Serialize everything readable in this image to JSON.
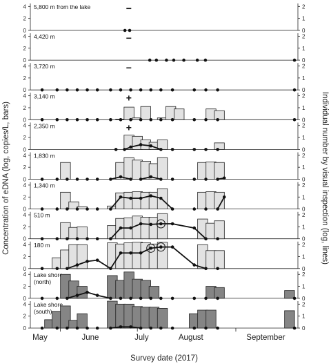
{
  "chart_data": {
    "type": "bar",
    "xlabel": "Survey date (2017)",
    "ylabel_left": "Concentration of eDNA (log, copies/L, bars)",
    "ylabel_right": "Individual number by visual inspection (log, lines)",
    "months": [
      "May",
      "June",
      "July",
      "August",
      "September"
    ],
    "y_left_ticks": [
      "0",
      "2",
      "4"
    ],
    "y_right_ticks": [
      "0",
      "1",
      "2"
    ],
    "ylim_left": [
      0,
      4.5
    ],
    "ylim_right": [
      0,
      2.25
    ],
    "colors": {
      "light_bar": "#e2e2e2",
      "dark_bar": "#858585",
      "line": "#111111"
    },
    "panels": [
      {
        "label": "5,800 m from the lake",
        "sign": "−",
        "bar_color": "light",
        "x": [
          12,
          30,
          45,
          67,
          90,
          103
        ],
        "bars": [
          0,
          0,
          0,
          0,
          0,
          0
        ],
        "line_x": [
          44.2,
          46.4
        ],
        "line_y": [
          0,
          0
        ],
        "circled_points": []
      },
      {
        "label": "4,420 m",
        "sign": "−",
        "bar_color": "light",
        "x": [
          12,
          30,
          45,
          67,
          90,
          103
        ],
        "bars": [
          0,
          0,
          0,
          0,
          0,
          0
        ],
        "line_x": [
          55.8,
          58.9,
          63.6,
          67.0,
          71.7,
          78.0,
          81.8,
          123.4
        ],
        "line_y": [
          0,
          0,
          0,
          0,
          0,
          0,
          0,
          0
        ],
        "circled_points": []
      },
      {
        "label": "3,720 m",
        "sign": "−",
        "bar_color": "light",
        "x": [
          12,
          30,
          45,
          67,
          90,
          103
        ],
        "bars": [
          0,
          0,
          0,
          0,
          0,
          0
        ],
        "line_x": [
          5.5,
          12.5,
          17.2,
          21.9,
          26.6,
          31.3,
          37.5,
          42.2,
          46.9,
          51.6,
          56.3,
          61.0,
          66.4,
          76.6,
          82.0,
          87.5,
          123.4
        ],
        "line_y": [
          0,
          0,
          0,
          0,
          0,
          0,
          0,
          0,
          0,
          0,
          0,
          0,
          0,
          0,
          0,
          0,
          0
        ],
        "circled_points": []
      },
      {
        "label": "3,140 m",
        "sign": "+",
        "bar_color": "light",
        "x": [
          30.5,
          34.4,
          38.3,
          42.2,
          46.1,
          50.0,
          53.9,
          61.7,
          65.6,
          69.5,
          80.5,
          84.4,
          88.3
        ],
        "bars": [
          0,
          0,
          0,
          0.1,
          2.1,
          0.3,
          2.2,
          0.3,
          2.2,
          1.8,
          0,
          1.8,
          1.5
        ],
        "line_x": [
          5.5,
          12.5,
          17.2,
          21.9,
          26.6,
          31.3,
          37.5,
          42.2,
          46.9,
          51.6,
          56.3,
          61.0,
          66.4,
          76.6,
          82.0,
          87.5,
          123.4
        ],
        "line_y": [
          0,
          0,
          0,
          0,
          0,
          0,
          0,
          0,
          0,
          0,
          0,
          0,
          0,
          0,
          0,
          0,
          0
        ],
        "circled_points": []
      },
      {
        "label": "2,350 m",
        "sign": "+",
        "bar_color": "light",
        "x": [
          46.1,
          50.0,
          53.9,
          57.8,
          61.7,
          88.3
        ],
        "bars": [
          2.4,
          2.2,
          1.6,
          1.2,
          1.6,
          1.1
        ],
        "line_x": [
          40.0,
          44.0,
          46.9,
          51.6,
          56.3,
          61.0,
          66.4,
          76.6,
          82.0,
          87.5
        ],
        "line_y": [
          0,
          0,
          0.2,
          0.4,
          0.3,
          0,
          0,
          0,
          0,
          0
        ],
        "circled_points": []
      },
      {
        "label": "1,830 m",
        "sign": "",
        "bar_color": "light",
        "x": [
          16.4,
          42.2,
          46.1,
          50.0,
          53.9,
          57.8,
          61.7,
          80.5,
          84.4,
          88.3
        ],
        "bars": [
          2.8,
          2.8,
          3.6,
          3.2,
          3.0,
          2.6,
          3.6,
          2.8,
          2.9,
          2.8
        ],
        "line_x": [
          5.5,
          12.5,
          17.2,
          21.9,
          26.6,
          31.3,
          37.5,
          42.2,
          46.9,
          51.6,
          56.3,
          61.0,
          66.4,
          76.6,
          82.0,
          87.5,
          90.6
        ],
        "line_y": [
          0,
          0,
          0,
          0,
          0,
          0,
          0,
          0.2,
          0,
          0,
          0.2,
          0,
          0,
          0,
          0,
          0,
          0.1
        ],
        "circled_points": []
      },
      {
        "label": "1,340 m",
        "sign": "",
        "bar_color": "light",
        "x": [
          16.4,
          20.3,
          24.2,
          38.3,
          42.2,
          46.1,
          50.0,
          53.9,
          57.8,
          61.7,
          80.5,
          84.4,
          88.3
        ],
        "bars": [
          2.8,
          1.2,
          0.4,
          0.5,
          2.7,
          2.8,
          2.9,
          2.8,
          2.8,
          3.4,
          2.8,
          2.9,
          2.8
        ],
        "line_x": [
          5.5,
          12.5,
          17.2,
          21.9,
          26.6,
          31.3,
          37.5,
          42.2,
          46.9,
          51.6,
          56.3,
          61.0,
          66.4,
          76.6,
          82.0,
          87.5,
          90.6
        ],
        "line_y": [
          0,
          0,
          0,
          0,
          0,
          0,
          0,
          1.0,
          0.9,
          0.9,
          1.1,
          0.9,
          0,
          0,
          0,
          0,
          1.0
        ],
        "circled_points": []
      },
      {
        "label": "510 m",
        "sign": "",
        "bar_color": "light",
        "x": [
          16.4,
          20.3,
          24.2,
          38.3,
          42.2,
          46.1,
          50.0,
          53.9,
          57.8,
          61.7,
          80.5,
          84.4,
          88.3
        ],
        "bars": [
          2.7,
          1.9,
          2.0,
          2.2,
          3.4,
          3.5,
          3.8,
          3.6,
          3.6,
          4.2,
          3.3,
          2.6,
          3.0
        ],
        "line_x": [
          5.5,
          12.5,
          17.2,
          21.9,
          26.6,
          31.3,
          37.5,
          42.2,
          46.9,
          51.6,
          56.3,
          61.0,
          66.4,
          76.6,
          82.0,
          87.5
        ],
        "line_y": [
          0,
          0,
          0,
          0,
          0,
          0,
          0,
          0.9,
          0.9,
          1.25,
          1.2,
          1.25,
          1.25,
          0.9,
          0,
          0
        ],
        "circled_points": [
          11
        ]
      },
      {
        "label": "180 m",
        "sign": "",
        "bar_color": "light",
        "x": [
          12.5,
          16.4,
          20.3,
          24.2,
          38.3,
          42.2,
          46.1,
          50.0,
          53.9,
          57.8,
          61.7,
          80.5,
          84.4,
          88.3
        ],
        "bars": [
          1.8,
          3.1,
          4.0,
          4.0,
          4.3,
          4.1,
          4.3,
          4.4,
          4.3,
          4.1,
          4.4,
          4.0,
          3.0,
          3.0
        ],
        "line_x": [
          5.5,
          12.5,
          17.2,
          21.9,
          26.6,
          31.3,
          37.5,
          42.2,
          46.9,
          51.6,
          56.3,
          61.0,
          66.4,
          76.6,
          82.0,
          87.5
        ],
        "line_y": [
          0,
          0,
          0,
          0.3,
          0.6,
          0.7,
          0,
          1.3,
          1.3,
          1.3,
          1.7,
          1.8,
          1.8,
          0.3,
          0,
          0
        ],
        "circled_points": [
          10,
          11
        ]
      },
      {
        "label": "Lake shore\n(north)",
        "sign": "",
        "bar_color": "dark",
        "x": [
          16.4,
          20.3,
          24.2,
          38.3,
          42.2,
          46.1,
          50.0,
          53.9,
          57.8,
          84.4,
          88.3,
          121.1
        ],
        "bars": [
          4.0,
          2.9,
          2.0,
          3.8,
          3.0,
          4.4,
          3.2,
          3.0,
          2.0,
          2.0,
          1.8,
          1.3
        ],
        "line_x": [
          5.5,
          12.5,
          17.2,
          21.9,
          26.6,
          31.3,
          37.5,
          42.2,
          46.9,
          51.6,
          56.3,
          61.0,
          66.4,
          76.6,
          82.0,
          87.5,
          123.4
        ],
        "line_y": [
          0,
          0,
          0,
          0.25,
          0.5,
          0.25,
          0,
          0,
          0,
          0,
          0,
          0,
          0,
          0,
          0,
          0,
          0
        ],
        "circled_points": []
      },
      {
        "label": "Lake shore\n(south)",
        "sign": "",
        "bar_color": "dark",
        "x": [
          9.0,
          12.5,
          16.4,
          20.3,
          24.2,
          38.3,
          42.2,
          46.1,
          50.0,
          53.9,
          57.8,
          61.7,
          76.6,
          80.5,
          84.4,
          121.1
        ],
        "bars": [
          1.4,
          2.8,
          3.7,
          1.3,
          2.4,
          4.5,
          4.0,
          4.0,
          3.6,
          3.5,
          3.5,
          3.3,
          2.4,
          3.0,
          3.0,
          2.9
        ],
        "line_x": [
          5.5,
          12.5,
          17.2,
          21.9,
          26.6,
          31.3,
          37.5,
          42.2,
          46.9,
          51.6,
          56.3,
          61.0,
          66.4,
          76.6,
          82.0,
          87.5,
          123.4
        ],
        "line_y": [
          0,
          0,
          0,
          0,
          0,
          0,
          0,
          0.1,
          0.1,
          0,
          0,
          0,
          0,
          0,
          0,
          0,
          0
        ],
        "circled_points": []
      }
    ]
  }
}
